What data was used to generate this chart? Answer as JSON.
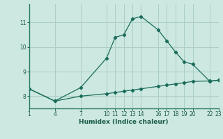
{
  "xlabel": "Humidex (Indice chaleur)",
  "bg_color": "#cce8e0",
  "grid_color": "#aacec6",
  "line_color": "#1a6b5a",
  "axis_color": "#2a7a6a",
  "tick_color": "#1a5a4a",
  "xlim": [
    1,
    23
  ],
  "ylim": [
    7.5,
    11.75
  ],
  "xticks": [
    1,
    4,
    7,
    10,
    11,
    12,
    13,
    14,
    16,
    17,
    18,
    19,
    20,
    22,
    23
  ],
  "yticks": [
    8,
    9,
    10,
    11
  ],
  "line1_x": [
    1,
    4,
    7,
    10,
    11,
    12,
    13,
    14,
    16,
    17,
    18,
    19,
    20,
    22,
    23
  ],
  "line1_y": [
    8.3,
    7.8,
    8.35,
    9.55,
    10.4,
    10.5,
    11.15,
    11.25,
    10.7,
    10.25,
    9.8,
    9.4,
    9.3,
    8.6,
    8.65
  ],
  "line2_x": [
    1,
    4,
    7,
    10,
    11,
    12,
    13,
    14,
    16,
    17,
    18,
    19,
    20,
    22,
    23
  ],
  "line2_y": [
    8.3,
    7.8,
    8.0,
    8.1,
    8.15,
    8.2,
    8.25,
    8.3,
    8.4,
    8.45,
    8.5,
    8.55,
    8.6,
    8.62,
    8.65
  ]
}
